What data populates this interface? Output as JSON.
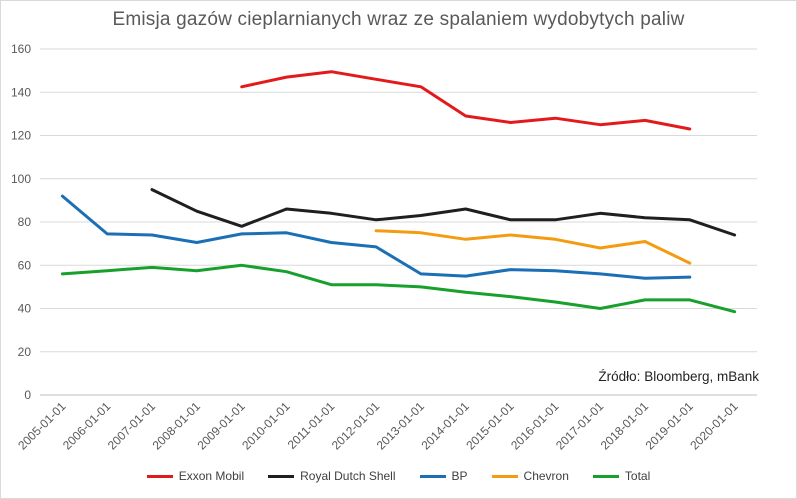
{
  "chart_data": {
    "type": "line",
    "title": "Emisja gazów cieplarnianych wraz ze spalaniem wydobytych paliw",
    "source": "Źródło: Bloomberg, mBank",
    "ylim": [
      0,
      160
    ],
    "yticks": [
      0,
      20,
      40,
      60,
      80,
      100,
      120,
      140,
      160
    ],
    "grid": true,
    "legend_position": "bottom",
    "categories": [
      "2005-01-01",
      "2006-01-01",
      "2007-01-01",
      "2008-01-01",
      "2009-01-01",
      "2010-01-01",
      "2011-01-01",
      "2012-01-01",
      "2013-01-01",
      "2014-01-01",
      "2015-01-01",
      "2016-01-01",
      "2017-01-01",
      "2018-01-01",
      "2019-01-01",
      "2020-01-01"
    ],
    "series": [
      {
        "name": "Exxon Mobil",
        "color": "#e31a1c",
        "values": [
          null,
          null,
          null,
          null,
          142.5,
          147,
          149.5,
          146,
          142.5,
          129,
          126,
          128,
          125,
          127,
          123,
          null
        ]
      },
      {
        "name": "Royal Dutch Shell",
        "color": "#1f1f1f",
        "values": [
          null,
          null,
          95,
          85,
          78,
          86,
          84,
          81,
          83,
          86,
          81,
          81,
          84,
          82,
          81,
          74
        ]
      },
      {
        "name": "BP",
        "color": "#1a6fb5",
        "values": [
          92,
          74.5,
          74,
          70.5,
          74.5,
          75,
          70.5,
          68.5,
          56,
          55,
          58,
          57.5,
          56,
          54,
          54.5,
          null
        ]
      },
      {
        "name": "Chevron",
        "color": "#f39c12",
        "values": [
          null,
          null,
          null,
          null,
          null,
          null,
          null,
          76,
          75,
          72,
          74,
          72,
          68,
          71,
          61,
          null
        ]
      },
      {
        "name": "Total",
        "color": "#18a02c",
        "values": [
          56,
          57.5,
          59,
          57.5,
          60,
          57,
          51,
          51,
          50,
          47.5,
          45.5,
          43,
          40,
          44,
          44,
          38.5
        ]
      }
    ]
  }
}
